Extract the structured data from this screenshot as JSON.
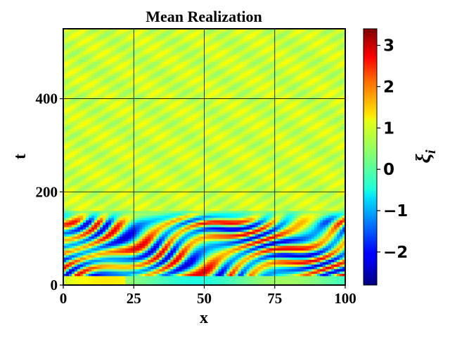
{
  "chart_data": {
    "type": "heatmap",
    "title": "Mean Realization",
    "xlabel": "x",
    "ylabel": "t",
    "xlim": [
      0,
      100
    ],
    "ylim": [
      0,
      550
    ],
    "x_ticks": [
      "0",
      "25",
      "50",
      "75",
      "100"
    ],
    "x_tick_values": [
      0,
      25,
      50,
      75,
      100
    ],
    "y_ticks": [
      "0",
      "200",
      "400"
    ],
    "y_tick_values": [
      0,
      200,
      400
    ],
    "grid": true,
    "colormap": "jet",
    "colorbar": {
      "label": "ξ_i",
      "label_main": "ξ",
      "label_sub": "i",
      "min": -2.8,
      "max": 3.4,
      "ticks": [
        "3",
        "2",
        "1",
        "0",
        "−1",
        "−2"
      ],
      "tick_values": [
        3,
        2,
        1,
        0,
        -1,
        -2
      ]
    },
    "regions": [
      {
        "t_range": [
          0,
          160
        ],
        "description_values": "oscillating stripes between -2.5 and 3"
      },
      {
        "t_range": [
          160,
          550
        ],
        "mean_value": 0.75
      }
    ]
  }
}
